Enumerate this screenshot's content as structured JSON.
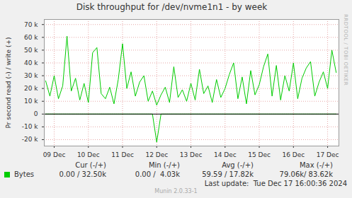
{
  "chart_data": {
    "type": "line",
    "title": "Disk throughput for /dev/nvme1n1 - by week",
    "y_label": "Pr second read (-) / write (+)",
    "x": [
      8.75,
      8.875,
      9.0,
      9.125,
      9.25,
      9.375,
      9.5,
      9.625,
      9.75,
      9.875,
      10.0,
      10.125,
      10.25,
      10.375,
      10.5,
      10.625,
      10.75,
      10.875,
      11.0,
      11.125,
      11.25,
      11.375,
      11.5,
      11.625,
      11.75,
      11.875,
      12.0,
      12.125,
      12.25,
      12.375,
      12.5,
      12.625,
      12.75,
      12.875,
      13.0,
      13.125,
      13.25,
      13.375,
      13.5,
      13.625,
      13.75,
      13.875,
      14.0,
      14.125,
      14.25,
      14.375,
      14.5,
      14.625,
      14.75,
      14.875,
      15.0,
      15.125,
      15.25,
      15.375,
      15.5,
      15.625,
      15.75,
      15.875,
      16.0,
      16.125,
      16.25,
      16.375,
      16.5,
      16.625,
      16.75,
      16.875,
      17.0,
      17.125,
      17.25
    ],
    "series": [
      {
        "name": "Bytes",
        "color": "#00cc00",
        "values": [
          26000,
          14000,
          30000,
          12000,
          22000,
          61000,
          18000,
          28000,
          11000,
          24000,
          9000,
          48000,
          52000,
          16000,
          12000,
          21000,
          8000,
          27000,
          55000,
          20000,
          33000,
          14000,
          25000,
          30000,
          10000,
          18000,
          7000,
          15000,
          21000,
          9000,
          37000,
          13000,
          19000,
          10000,
          24000,
          11000,
          35000,
          16000,
          22000,
          9000,
          27000,
          13000,
          20000,
          31000,
          40000,
          12000,
          29000,
          8000,
          34000,
          15000,
          23000,
          37000,
          47000,
          14000,
          38000,
          11000,
          30000,
          18000,
          40000,
          12000,
          28000,
          36000,
          41000,
          14000,
          25000,
          33000,
          20000,
          50000,
          32500
        ],
        "read_values": [
          0,
          0,
          0,
          0,
          0,
          0,
          0,
          0,
          0,
          0,
          0,
          0,
          0,
          0,
          0,
          0,
          0,
          0,
          0,
          0,
          0,
          0,
          0,
          0,
          0,
          0,
          -22000,
          0,
          0,
          0,
          0,
          0,
          0,
          0,
          0,
          0,
          0,
          0,
          0,
          0,
          0,
          0,
          0,
          0,
          0,
          0,
          0,
          0,
          0,
          0,
          0,
          0,
          0,
          0,
          0,
          0,
          0,
          0,
          0,
          0,
          0,
          0,
          0,
          0,
          0,
          0,
          0,
          0,
          0
        ]
      }
    ],
    "xlim": [
      8.71,
      17.33
    ],
    "xticks": [
      {
        "value": 9,
        "label": "09 Dec"
      },
      {
        "value": 10,
        "label": "10 Dec"
      },
      {
        "value": 11,
        "label": "11 Dec"
      },
      {
        "value": 12,
        "label": "12 Dec"
      },
      {
        "value": 13,
        "label": "13 Dec"
      },
      {
        "value": 14,
        "label": "14 Dec"
      },
      {
        "value": 15,
        "label": "15 Dec"
      },
      {
        "value": 16,
        "label": "16 Dec"
      },
      {
        "value": 17,
        "label": "17 Dec"
      }
    ],
    "ylim": [
      -25000,
      74000
    ],
    "yticks": [
      {
        "value": -20000,
        "label": "-20 k"
      },
      {
        "value": -10000,
        "label": "-10 k"
      },
      0,
      {
        "value": 10000,
        "label": "10 k"
      },
      {
        "value": 20000,
        "label": "20 k"
      },
      {
        "value": 30000,
        "label": "30 k"
      },
      {
        "value": 40000,
        "label": "40 k"
      },
      {
        "value": 50000,
        "label": "50 k"
      },
      {
        "value": 60000,
        "label": "60 k"
      },
      {
        "value": 70000,
        "label": "70 k"
      }
    ],
    "grid": true,
    "legend_table": {
      "columns": [
        "Cur (-/+)",
        "Min (-/+)",
        "Avg (-/+)",
        "Max (-/+)"
      ],
      "rows": [
        {
          "name": "Bytes",
          "cells": [
            "0.00 / 32.50k",
            "0.00 /  4.03k",
            "59.59 / 17.82k",
            "79.06k/ 83.62k"
          ]
        }
      ]
    },
    "last_update": "Last update:  Tue Dec 17 16:00:36 2024",
    "side_text": "RRDTOOL / TOBI OETIKER",
    "footer": "Munin 2.0.33-1"
  }
}
